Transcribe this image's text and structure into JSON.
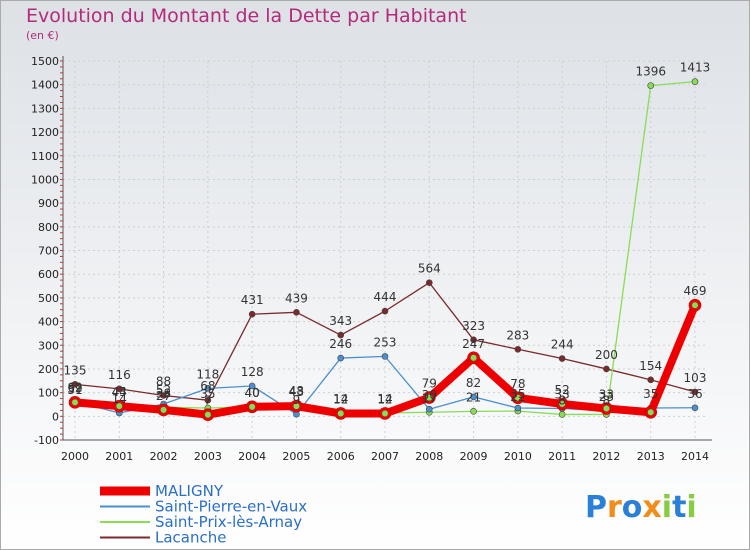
{
  "chart_data": {
    "type": "line",
    "title": "Evolution du Montant de la Dette par Habitant",
    "subtitle": "(en €)",
    "xlabel": "",
    "ylabel": "",
    "ylim": [
      -100,
      1500
    ],
    "yticks": [
      -100,
      0,
      100,
      200,
      300,
      400,
      500,
      600,
      700,
      800,
      900,
      1000,
      1100,
      1200,
      1300,
      1400,
      1500
    ],
    "categories": [
      "2000",
      "2001",
      "2002",
      "2003",
      "2004",
      "2005",
      "2006",
      "2007",
      "2008",
      "2009",
      "2010",
      "2011",
      "2012",
      "2013",
      "2014"
    ],
    "grid": true,
    "legend": "bottom-left",
    "series": [
      {
        "name": "MALIGNY",
        "color": "#ee0000",
        "values": [
          59,
          43,
          27,
          7,
          40,
          43,
          12,
          12,
          79,
          247,
          78,
          52,
          33,
          17,
          469
        ],
        "labels": [
          "59",
          "43",
          "27",
          "7",
          "40",
          "43",
          "12",
          "12",
          "79",
          "247",
          "78",
          "52",
          "33",
          "",
          "469"
        ]
      },
      {
        "name": "Saint-Pierre-en-Vaux",
        "color": "#4a90d0",
        "values": [
          62,
          14,
          52,
          118,
          128,
          9,
          246,
          253,
          30,
          82,
          35,
          33,
          23,
          35,
          36
        ],
        "labels": [
          "62",
          "14",
          "52",
          "118",
          "128",
          "9",
          "246",
          "253",
          "30",
          "82",
          "35",
          "33",
          "23",
          "35",
          "36"
        ]
      },
      {
        "name": "Saint-Prix-lès-Arnay",
        "color": "#88dd55",
        "values": [
          51,
          44,
          38,
          35,
          40,
          48,
          14,
          14,
          17,
          21,
          22,
          8,
          8,
          1396,
          1413
        ],
        "labels": [
          "51",
          "44",
          "38",
          "35",
          "40",
          "48",
          "14",
          "14",
          "17",
          "21",
          "22",
          "8",
          "8",
          "1396",
          "1413"
        ]
      },
      {
        "name": "Lacanche",
        "color": "#7a2a2a",
        "values": [
          135,
          116,
          88,
          68,
          431,
          439,
          343,
          444,
          564,
          323,
          283,
          244,
          200,
          154,
          103
        ],
        "labels": [
          "135",
          "116",
          "88",
          "68",
          "431",
          "439",
          "343",
          "444",
          "564",
          "323",
          "283",
          "244",
          "200",
          "154",
          "103"
        ]
      }
    ]
  },
  "brand": {
    "letters": [
      "P",
      "r",
      "o",
      "x",
      "i",
      "t",
      "i"
    ],
    "colors": [
      "#2a7fd6",
      "#f28c1a",
      "#2a7fd6",
      "#f28c1a",
      "#88cc44",
      "#2a7fd6",
      "#88cc44"
    ]
  }
}
